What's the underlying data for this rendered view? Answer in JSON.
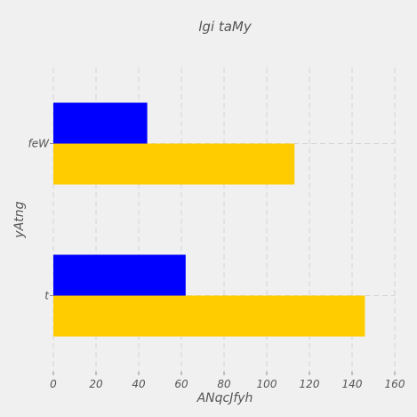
{
  "chart_data": {
    "type": "bar",
    "orientation": "horizontal",
    "title": "lgi  taMy",
    "xlabel": "ANqcJfyh",
    "ylabel": "yAtng",
    "categories": [
      "t",
      "feW"
    ],
    "series": [
      {
        "color": "#ffcc00",
        "values": [
          146,
          113
        ]
      },
      {
        "color": "#0000ff",
        "values": [
          62,
          44
        ]
      }
    ],
    "xlim": [
      0,
      160
    ],
    "xticks": [
      0,
      20,
      40,
      60,
      80,
      100,
      120,
      140,
      160
    ],
    "grid": true
  }
}
